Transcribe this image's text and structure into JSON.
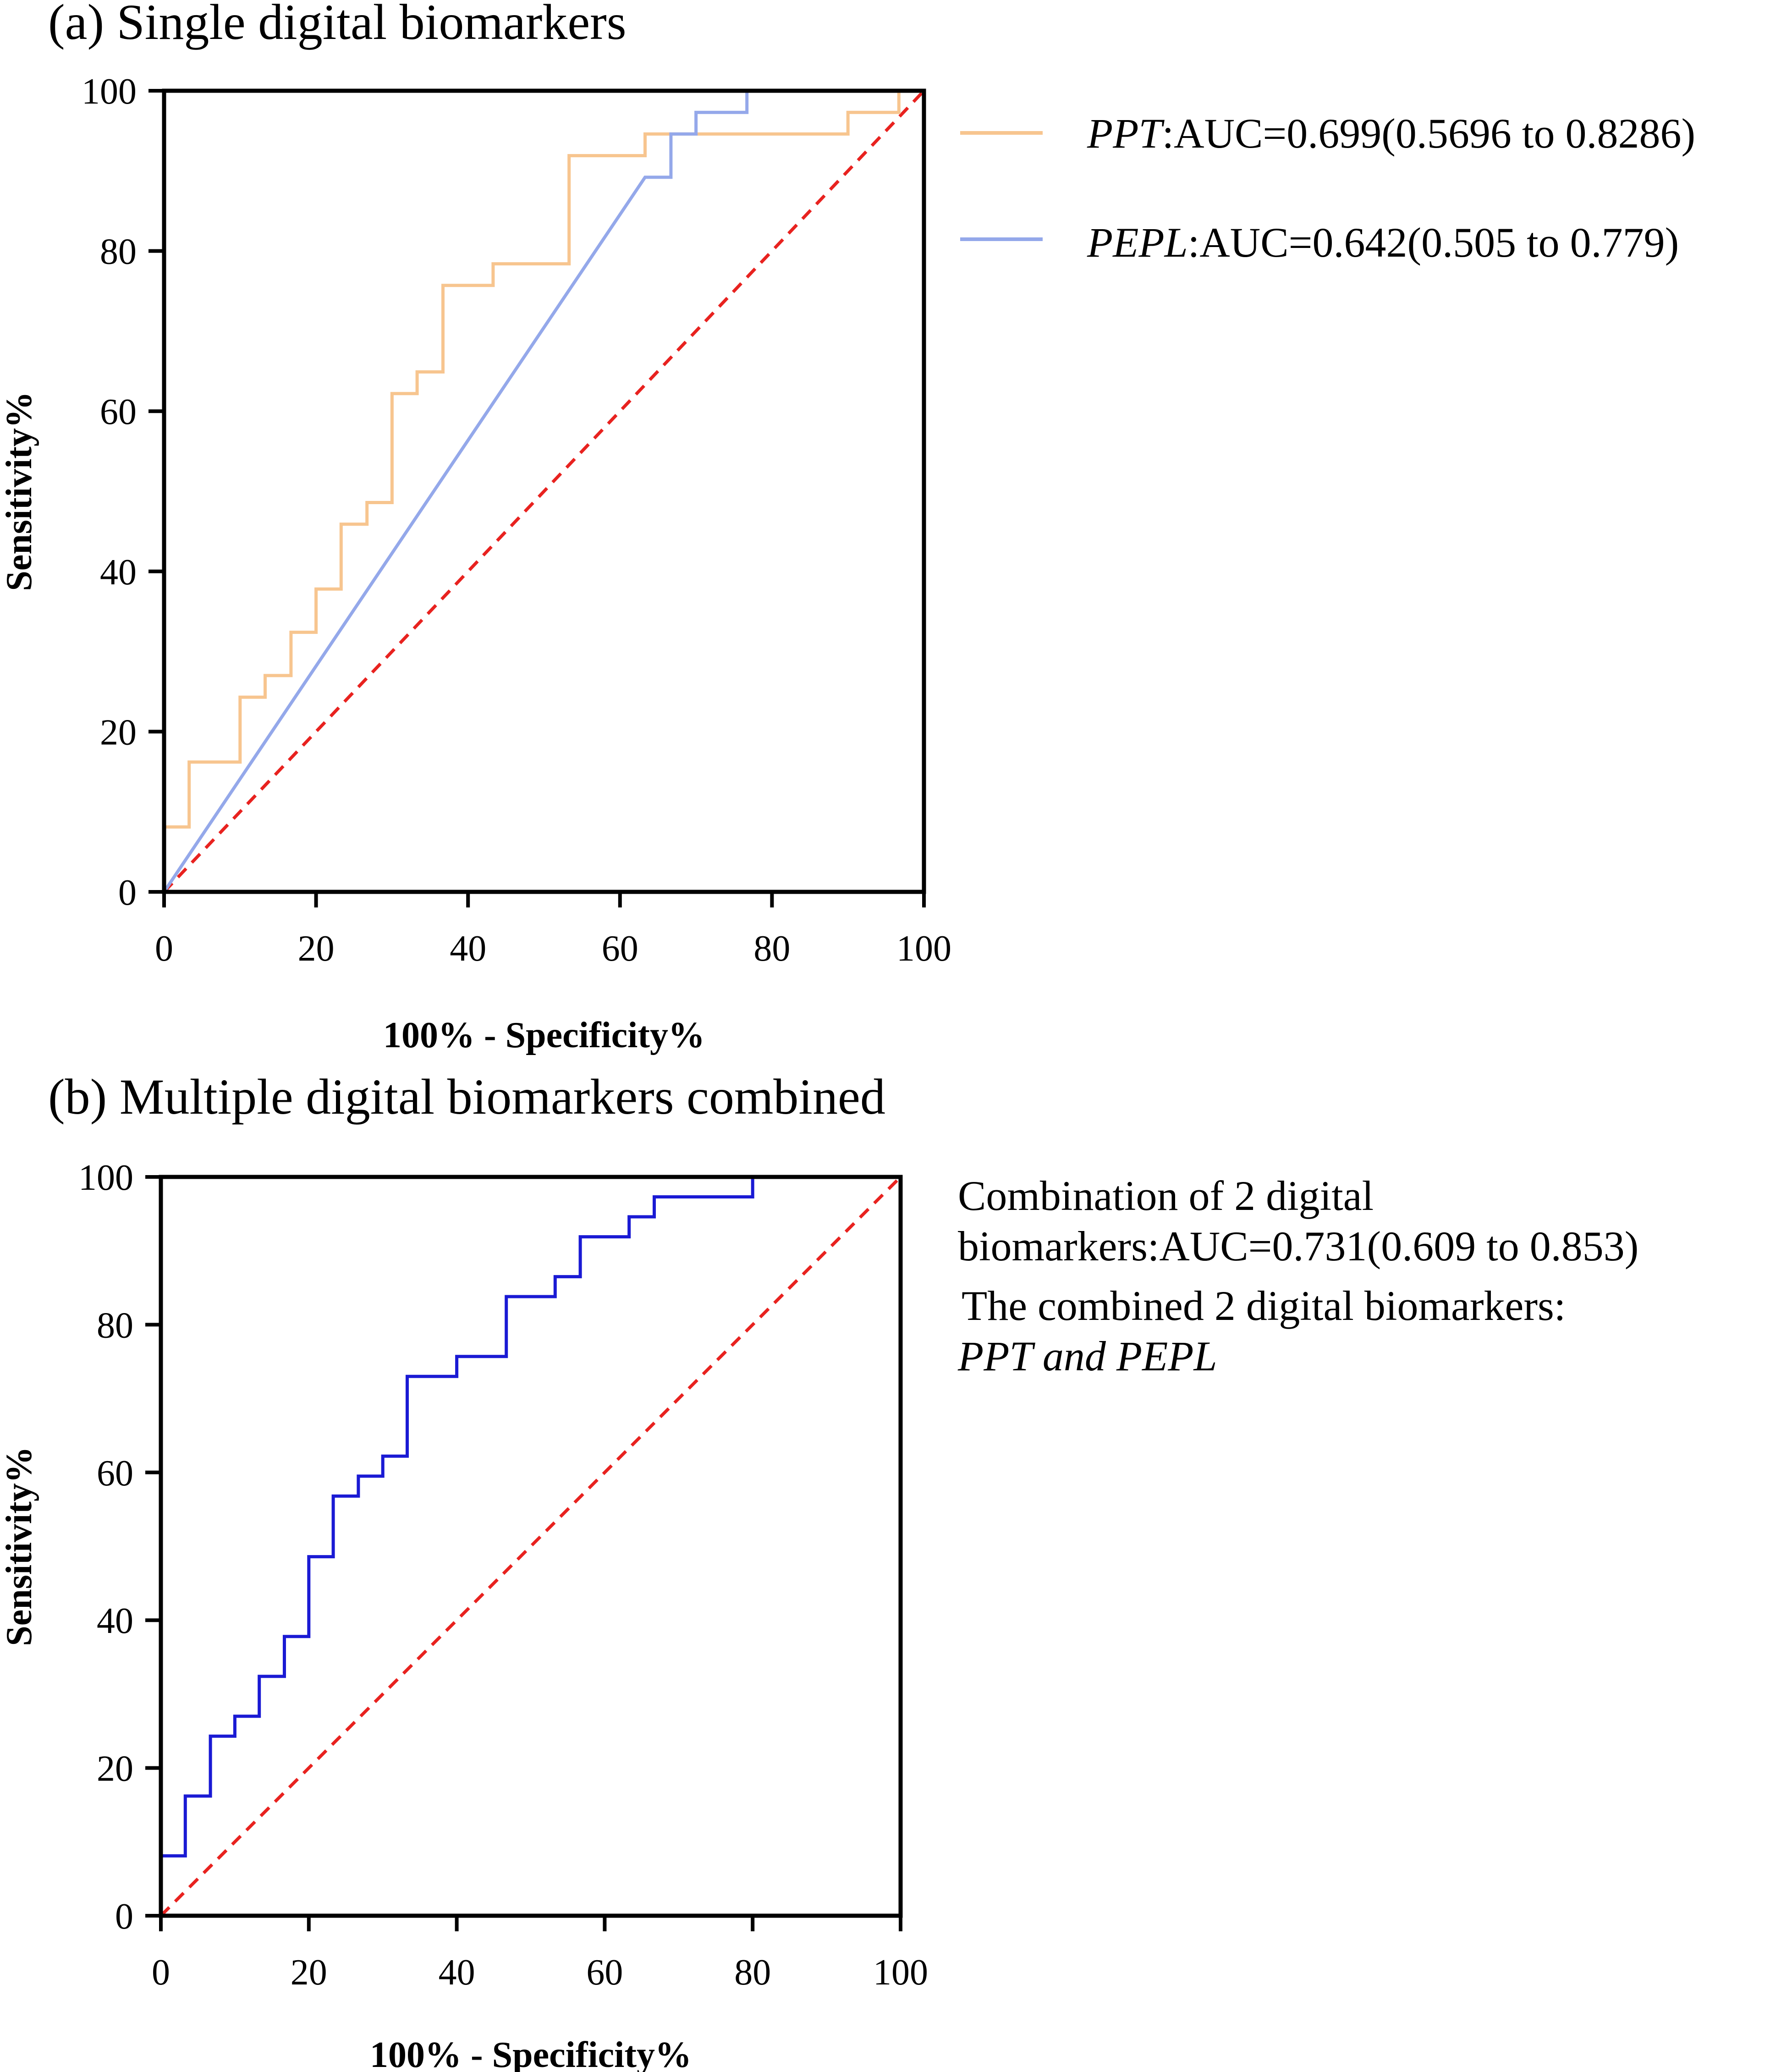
{
  "colors": {
    "ppt": "#f7c58f",
    "pepl": "#94a8ea",
    "combined": "#1a1ad4",
    "reference": "#e8221f"
  },
  "chart_data": [
    {
      "type": "line",
      "title": "(a) Single digital biomarkers",
      "xlabel": "100% - Specificity%",
      "ylabel": "Sensitivity%",
      "xlim": [
        0,
        100
      ],
      "ylim": [
        0,
        100
      ],
      "xticks": [
        "0",
        "20",
        "40",
        "60",
        "80",
        "100"
      ],
      "yticks": [
        "0",
        "20",
        "40",
        "60",
        "80",
        "100"
      ],
      "legend_position": "right",
      "reference_line": [
        [
          0,
          0
        ],
        [
          100,
          100
        ]
      ],
      "series": [
        {
          "key": "ppt",
          "name_italic": "PPT",
          "name_rest": ":AUC=0.699(0.5696 to 0.8286)",
          "x": [
            0,
            0,
            3.3,
            3.3,
            10,
            10,
            13.3,
            13.3,
            16.7,
            16.7,
            20,
            20,
            23.3,
            23.3,
            26.7,
            26.7,
            30,
            30,
            33.3,
            33.3,
            36.7,
            36.7,
            43.3,
            43.3,
            53.3,
            53.3,
            63.3,
            63.3,
            90,
            90,
            96.7,
            96.7,
            100
          ],
          "y": [
            0,
            8.1,
            8.1,
            16.2,
            16.2,
            24.3,
            24.3,
            27,
            27,
            32.4,
            32.4,
            37.8,
            37.8,
            45.9,
            45.9,
            48.6,
            48.6,
            62.2,
            62.2,
            64.9,
            64.9,
            75.7,
            75.7,
            78.4,
            78.4,
            91.9,
            91.9,
            94.6,
            94.6,
            97.3,
            97.3,
            100,
            100
          ]
        },
        {
          "key": "pepl",
          "name_italic": "PEPL",
          "name_rest": ":AUC=0.642(0.505 to 0.779)",
          "x": [
            0,
            63.3,
            66.7,
            66.7,
            70,
            70,
            76.7,
            76.7,
            100
          ],
          "y": [
            0,
            89.2,
            89.2,
            94.6,
            94.6,
            97.3,
            97.3,
            100,
            100
          ]
        }
      ]
    },
    {
      "type": "line",
      "title": "(b) Multiple digital biomarkers combined",
      "xlabel": "100% - Specificity%",
      "ylabel": "Sensitivity%",
      "xlim": [
        0,
        100
      ],
      "ylim": [
        0,
        100
      ],
      "xticks": [
        "0",
        "20",
        "40",
        "60",
        "80",
        "100"
      ],
      "yticks": [
        "0",
        "20",
        "40",
        "60",
        "80",
        "100"
      ],
      "legend_position": "right",
      "reference_line": [
        [
          0,
          0
        ],
        [
          100,
          100
        ]
      ],
      "annotation_lines": [
        "Combination of 2 digital",
        "biomarkers:AUC=0.731(0.609 to 0.853)",
        "The combined 2 digital biomarkers:",
        "PPT and PEPL"
      ],
      "series": [
        {
          "key": "combined",
          "x": [
            0,
            0,
            3.3,
            3.3,
            6.7,
            6.7,
            10,
            10,
            13.3,
            13.3,
            16.7,
            16.7,
            20,
            20,
            23.3,
            23.3,
            26.7,
            26.7,
            30,
            30,
            33.3,
            33.3,
            40,
            40,
            46.7,
            46.7,
            53.3,
            53.3,
            56.7,
            56.7,
            63.3,
            63.3,
            66.7,
            66.7,
            80,
            80,
            100
          ],
          "y": [
            0,
            8.1,
            8.1,
            16.2,
            16.2,
            24.3,
            24.3,
            27,
            27,
            32.4,
            32.4,
            37.8,
            37.8,
            48.6,
            48.6,
            56.8,
            56.8,
            59.5,
            59.5,
            62.2,
            62.2,
            73,
            73,
            75.7,
            75.7,
            83.8,
            83.8,
            86.5,
            86.5,
            91.9,
            91.9,
            94.6,
            94.6,
            97.3,
            97.3,
            100,
            100
          ]
        }
      ]
    }
  ]
}
